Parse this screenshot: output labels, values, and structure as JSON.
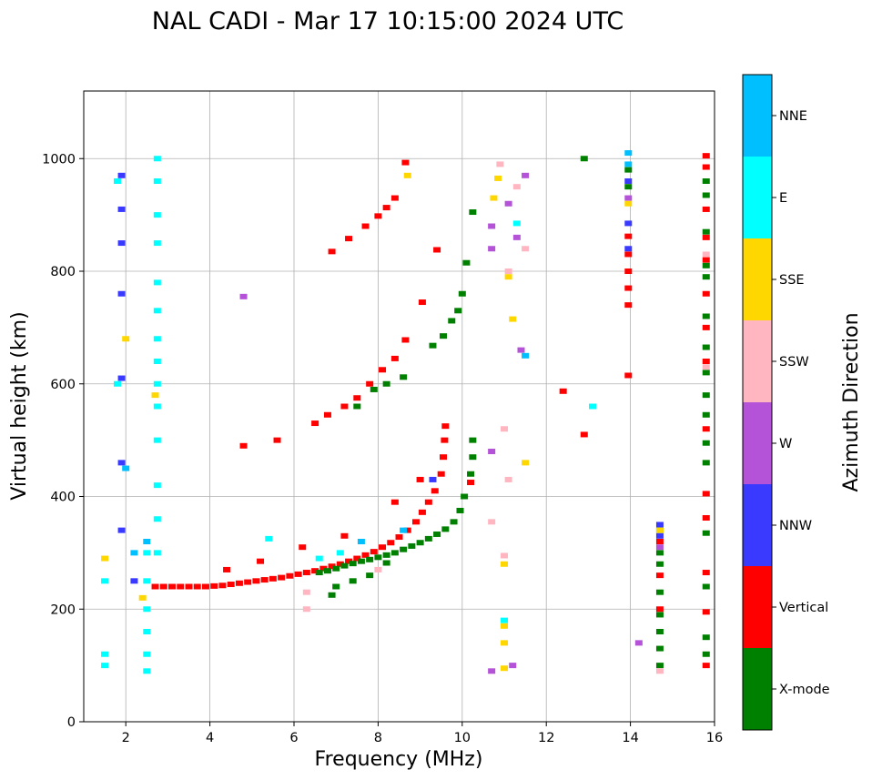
{
  "chart_data": {
    "type": "scatter",
    "title": "NAL CADI - Mar 17 10:15:00 2024 UTC",
    "xlabel": "Frequency (MHz)",
    "ylabel": "Virtual height (km)",
    "xlim": [
      1,
      16
    ],
    "ylim": [
      0,
      1120
    ],
    "xticks": [
      "2",
      "4",
      "6",
      "8",
      "10",
      "12",
      "14",
      "16"
    ],
    "yticks": [
      "0",
      "200",
      "400",
      "600",
      "800",
      "1000"
    ],
    "grid": true,
    "colorbar": {
      "label": "Azimuth Direction",
      "categories": [
        "X-mode",
        "Vertical",
        "NNW",
        "W",
        "SSW",
        "SSE",
        "E",
        "NNE"
      ],
      "colors": [
        "#008000",
        "#ff0000",
        "#3a3aff",
        "#b452d8",
        "#ffb6c1",
        "#ffd700",
        "#00ffff",
        "#00bfff"
      ]
    },
    "series": [
      {
        "name": "Vertical",
        "color": "#ff0000",
        "points": [
          [
            2.7,
            240
          ],
          [
            2.9,
            240
          ],
          [
            3.1,
            240
          ],
          [
            3.3,
            240
          ],
          [
            3.5,
            240
          ],
          [
            3.7,
            240
          ],
          [
            3.9,
            240
          ],
          [
            4.1,
            241
          ],
          [
            4.3,
            242
          ],
          [
            4.5,
            244
          ],
          [
            4.7,
            246
          ],
          [
            4.9,
            248
          ],
          [
            5.1,
            250
          ],
          [
            5.3,
            252
          ],
          [
            5.5,
            254
          ],
          [
            5.7,
            256
          ],
          [
            5.9,
            259
          ],
          [
            6.1,
            262
          ],
          [
            6.3,
            265
          ],
          [
            6.5,
            268
          ],
          [
            6.7,
            272
          ],
          [
            6.9,
            276
          ],
          [
            7.1,
            280
          ],
          [
            7.3,
            285
          ],
          [
            7.5,
            290
          ],
          [
            7.7,
            296
          ],
          [
            7.9,
            302
          ],
          [
            8.1,
            310
          ],
          [
            8.3,
            318
          ],
          [
            8.5,
            328
          ],
          [
            8.7,
            340
          ],
          [
            8.9,
            355
          ],
          [
            9.05,
            372
          ],
          [
            9.2,
            390
          ],
          [
            9.35,
            410
          ],
          [
            9.5,
            440
          ],
          [
            9.55,
            470
          ],
          [
            9.58,
            500
          ],
          [
            9.6,
            525
          ],
          [
            6.5,
            530
          ],
          [
            6.8,
            545
          ],
          [
            7.2,
            560
          ],
          [
            7.5,
            575
          ],
          [
            7.8,
            600
          ],
          [
            8.1,
            625
          ],
          [
            8.4,
            645
          ],
          [
            8.65,
            678
          ],
          [
            9.05,
            745
          ],
          [
            6.9,
            835
          ],
          [
            7.3,
            858
          ],
          [
            7.7,
            880
          ],
          [
            8.0,
            898
          ],
          [
            8.2,
            913
          ],
          [
            8.4,
            930
          ],
          [
            8.65,
            993
          ],
          [
            9.4,
            838
          ],
          [
            10.2,
            425
          ],
          [
            4.8,
            490
          ],
          [
            5.6,
            500
          ],
          [
            12.4,
            587
          ],
          [
            12.9,
            510
          ],
          [
            13.95,
            615
          ],
          [
            13.95,
            740
          ],
          [
            13.95,
            770
          ],
          [
            13.95,
            800
          ],
          [
            13.95,
            830
          ],
          [
            13.95,
            862
          ],
          [
            15.8,
            100
          ],
          [
            15.8,
            195
          ],
          [
            15.8,
            265
          ],
          [
            15.8,
            362
          ],
          [
            15.8,
            405
          ],
          [
            15.8,
            520
          ],
          [
            15.8,
            640
          ],
          [
            15.8,
            700
          ],
          [
            15.8,
            760
          ],
          [
            15.8,
            820
          ],
          [
            15.8,
            860
          ],
          [
            15.8,
            910
          ],
          [
            15.8,
            985
          ],
          [
            15.8,
            1005
          ],
          [
            14.7,
            320
          ],
          [
            14.7,
            260
          ],
          [
            14.7,
            200
          ],
          [
            4.4,
            270
          ],
          [
            5.2,
            285
          ],
          [
            6.2,
            310
          ],
          [
            7.2,
            330
          ],
          [
            8.4,
            390
          ],
          [
            9.0,
            430
          ]
        ]
      },
      {
        "name": "X-mode",
        "color": "#008000",
        "points": [
          [
            6.6,
            265
          ],
          [
            6.8,
            268
          ],
          [
            7.0,
            272
          ],
          [
            7.2,
            277
          ],
          [
            7.4,
            281
          ],
          [
            7.6,
            285
          ],
          [
            7.8,
            288
          ],
          [
            8.0,
            292
          ],
          [
            8.2,
            296
          ],
          [
            8.4,
            300
          ],
          [
            8.6,
            306
          ],
          [
            8.8,
            312
          ],
          [
            9.0,
            318
          ],
          [
            9.2,
            325
          ],
          [
            9.4,
            333
          ],
          [
            9.6,
            342
          ],
          [
            9.8,
            355
          ],
          [
            9.95,
            375
          ],
          [
            10.05,
            400
          ],
          [
            10.2,
            440
          ],
          [
            10.25,
            470
          ],
          [
            10.25,
            500
          ],
          [
            7.0,
            240
          ],
          [
            7.4,
            250
          ],
          [
            7.8,
            260
          ],
          [
            8.2,
            282
          ],
          [
            6.9,
            225
          ],
          [
            7.5,
            560
          ],
          [
            7.9,
            590
          ],
          [
            8.2,
            600
          ],
          [
            8.6,
            612
          ],
          [
            9.3,
            668
          ],
          [
            9.55,
            685
          ],
          [
            9.75,
            712
          ],
          [
            9.9,
            730
          ],
          [
            10.0,
            760
          ],
          [
            10.1,
            815
          ],
          [
            10.25,
            905
          ],
          [
            12.9,
            1000
          ],
          [
            13.95,
            950
          ],
          [
            13.95,
            980
          ],
          [
            14.7,
            100
          ],
          [
            14.7,
            130
          ],
          [
            14.7,
            160
          ],
          [
            14.7,
            190
          ],
          [
            14.7,
            230
          ],
          [
            14.7,
            280
          ],
          [
            14.7,
            300
          ],
          [
            14.7,
            340
          ],
          [
            15.8,
            120
          ],
          [
            15.8,
            150
          ],
          [
            15.8,
            240
          ],
          [
            15.8,
            335
          ],
          [
            15.8,
            460
          ],
          [
            15.8,
            495
          ],
          [
            15.8,
            545
          ],
          [
            15.8,
            580
          ],
          [
            15.8,
            620
          ],
          [
            15.8,
            665
          ],
          [
            15.8,
            720
          ],
          [
            15.8,
            790
          ],
          [
            15.8,
            810
          ],
          [
            15.8,
            870
          ],
          [
            15.8,
            935
          ],
          [
            15.8,
            960
          ]
        ]
      },
      {
        "name": "NNW",
        "color": "#3a3aff",
        "points": [
          [
            1.9,
            970
          ],
          [
            1.9,
            910
          ],
          [
            1.9,
            850
          ],
          [
            1.9,
            760
          ],
          [
            1.9,
            610
          ],
          [
            1.9,
            460
          ],
          [
            1.9,
            340
          ],
          [
            2.2,
            250
          ],
          [
            13.95,
            885
          ],
          [
            13.95,
            840
          ],
          [
            13.95,
            960
          ],
          [
            14.7,
            330
          ],
          [
            14.7,
            350
          ],
          [
            9.3,
            430
          ]
        ]
      },
      {
        "name": "W",
        "color": "#b452d8",
        "points": [
          [
            10.7,
            840
          ],
          [
            10.7,
            880
          ],
          [
            11.3,
            860
          ],
          [
            11.1,
            920
          ],
          [
            11.5,
            970
          ],
          [
            11.4,
            660
          ],
          [
            10.7,
            480
          ],
          [
            4.8,
            755
          ],
          [
            14.2,
            140
          ],
          [
            13.95,
            930
          ],
          [
            14.7,
            310
          ],
          [
            11.2,
            100
          ],
          [
            10.7,
            90
          ]
        ]
      },
      {
        "name": "SSW",
        "color": "#ffb6c1",
        "points": [
          [
            10.9,
            990
          ],
          [
            11.3,
            950
          ],
          [
            11.5,
            840
          ],
          [
            11.1,
            800
          ],
          [
            11.0,
            520
          ],
          [
            11.1,
            430
          ],
          [
            11.0,
            295
          ],
          [
            10.7,
            355
          ],
          [
            6.3,
            230
          ],
          [
            6.3,
            200
          ],
          [
            8.0,
            270
          ],
          [
            14.7,
            90
          ],
          [
            15.8,
            630
          ],
          [
            15.8,
            830
          ]
        ]
      },
      {
        "name": "SSE",
        "color": "#ffd700",
        "points": [
          [
            10.75,
            930
          ],
          [
            10.85,
            965
          ],
          [
            11.1,
            790
          ],
          [
            11.2,
            715
          ],
          [
            11.5,
            460
          ],
          [
            11.0,
            280
          ],
          [
            11.0,
            170
          ],
          [
            11.0,
            140
          ],
          [
            11.0,
            95
          ],
          [
            8.7,
            970
          ],
          [
            1.5,
            290
          ],
          [
            2.0,
            680
          ],
          [
            2.7,
            580
          ],
          [
            2.4,
            220
          ],
          [
            13.95,
            920
          ],
          [
            14.7,
            340
          ]
        ]
      },
      {
        "name": "E",
        "color": "#00ffff",
        "points": [
          [
            1.5,
            120
          ],
          [
            1.5,
            100
          ],
          [
            1.5,
            250
          ],
          [
            1.8,
            960
          ],
          [
            1.8,
            600
          ],
          [
            2.5,
            300
          ],
          [
            2.5,
            250
          ],
          [
            2.5,
            200
          ],
          [
            2.5,
            160
          ],
          [
            2.5,
            120
          ],
          [
            2.5,
            90
          ],
          [
            2.75,
            1000
          ],
          [
            2.75,
            960
          ],
          [
            2.75,
            900
          ],
          [
            2.75,
            850
          ],
          [
            2.75,
            780
          ],
          [
            2.75,
            730
          ],
          [
            2.75,
            680
          ],
          [
            2.75,
            640
          ],
          [
            2.75,
            600
          ],
          [
            2.75,
            560
          ],
          [
            2.75,
            500
          ],
          [
            2.75,
            420
          ],
          [
            2.75,
            360
          ],
          [
            2.75,
            300
          ],
          [
            11.3,
            885
          ],
          [
            13.1,
            560
          ],
          [
            11.0,
            180
          ],
          [
            5.4,
            325
          ],
          [
            6.6,
            290
          ],
          [
            7.1,
            300
          ]
        ]
      },
      {
        "name": "NNE",
        "color": "#00bfff",
        "points": [
          [
            13.95,
            1010
          ],
          [
            13.95,
            990
          ],
          [
            11.5,
            650
          ],
          [
            2.0,
            450
          ],
          [
            2.5,
            320
          ],
          [
            2.2,
            300
          ],
          [
            7.6,
            320
          ],
          [
            8.6,
            340
          ]
        ]
      }
    ]
  }
}
